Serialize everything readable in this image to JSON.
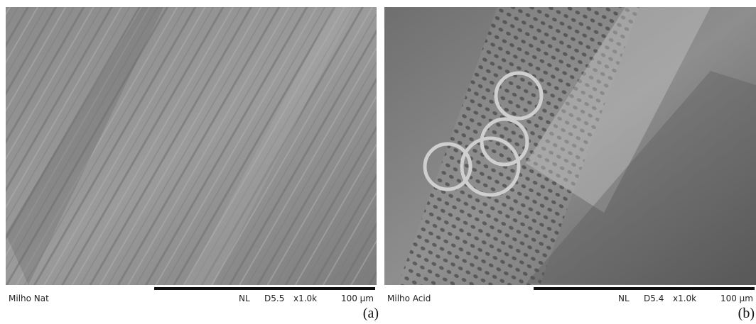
{
  "panels": [
    {
      "sample": "Milho Nat",
      "mode": "NL",
      "distance": "D5.5",
      "magnification": "x1.0k",
      "scale": "100 µm",
      "caption": "(a)"
    },
    {
      "sample": "Milho Acid",
      "mode": "NL",
      "distance": "D5.4",
      "magnification": "x1.0k",
      "scale": "100 µm",
      "caption": "(b)"
    }
  ]
}
